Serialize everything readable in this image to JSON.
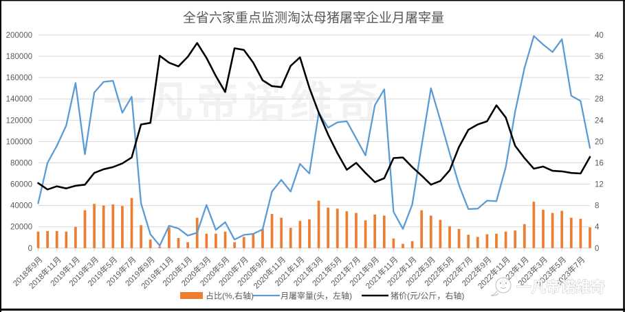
{
  "chart_data": {
    "type": "combo",
    "title": "全省六家重点监测淘汰母猪屠宰企业月屠宰量",
    "months": [
      "2018年9月",
      "2018年10月",
      "2018年11月",
      "2018年12月",
      "2019年1月",
      "2019年2月",
      "2019年3月",
      "2019年4月",
      "2019年5月",
      "2019年6月",
      "2019年7月",
      "2019年8月",
      "2019年9月",
      "2019年10月",
      "2019年11月",
      "2019年12月",
      "2020年1月",
      "2020年2月",
      "2020年3月",
      "2020年4月",
      "2020年5月",
      "2020年6月",
      "2020年7月",
      "2020年8月",
      "2020年9月",
      "2020年10月",
      "2020年11月",
      "2020年12月",
      "2021年1月",
      "2021年2月",
      "2021年3月",
      "2021年4月",
      "2021年5月",
      "2021年6月",
      "2021年7月",
      "2021年8月",
      "2021年9月",
      "2021年10月",
      "2021年11月",
      "2021年12月",
      "2022年1月",
      "2022年2月",
      "2022年3月",
      "2022年4月",
      "2022年5月",
      "2022年6月",
      "2022年7月",
      "2022年8月",
      "2022年9月",
      "2022年10月",
      "2022年11月",
      "2022年12月",
      "2023年1月",
      "2023年2月",
      "2023年3月",
      "2023年4月",
      "2023年5月",
      "2023年6月",
      "2023年7月",
      "2023年8月"
    ],
    "x_tick_labels": [
      "2018年9月",
      "2018年11月",
      "2019年1月",
      "2019年3月",
      "2019年5月",
      "2019年7月",
      "2019年9月",
      "2019年11月",
      "2020年1月",
      "2020年3月",
      "2020年5月",
      "2020年7月",
      "2020年9月",
      "2020年11月",
      "2021年1月",
      "2021年3月",
      "2021年5月",
      "2021年7月",
      "2021年9月",
      "2021年11月",
      "2022年1月",
      "2022年3月",
      "2022年5月",
      "2022年7月",
      "2022年9月",
      "2022年11月",
      "2023年1月",
      "2023年3月",
      "2023年5月",
      "2023年7月"
    ],
    "series": [
      {
        "name": "占比(%,右轴)",
        "type": "bar",
        "axis": "right",
        "color": "#ED7D31",
        "values": [
          3.1,
          3.2,
          3.2,
          3.1,
          4.0,
          7.1,
          8.3,
          8.0,
          8.2,
          7.9,
          9.4,
          4.3,
          1.6,
          0.3,
          3.9,
          1.9,
          1.1,
          5.7,
          2.7,
          2.7,
          3.1,
          1.1,
          2.1,
          2.6,
          3.6,
          6.4,
          5.7,
          3.8,
          5.1,
          5.4,
          8.9,
          7.6,
          7.4,
          6.9,
          6.6,
          5.2,
          6.3,
          6.1,
          1.8,
          0.8,
          1.3,
          7.1,
          6.1,
          5.3,
          4.1,
          3.6,
          2.5,
          2.1,
          2.6,
          2.7,
          3.1,
          3.3,
          4.5,
          8.7,
          7.2,
          6.6,
          7.0,
          5.7,
          5.5,
          3.9
        ]
      },
      {
        "name": "月屠宰量(头，左轴)",
        "type": "line",
        "axis": "left",
        "color": "#5B9BD5",
        "values": [
          42000,
          80000,
          96000,
          115000,
          155000,
          88000,
          146000,
          156000,
          157000,
          127000,
          142000,
          42000,
          13000,
          2300,
          21000,
          18400,
          11700,
          14400,
          40500,
          17100,
          24300,
          8000,
          12400,
          13400,
          17500,
          53000,
          64000,
          53000,
          79000,
          70000,
          127000,
          113000,
          118000,
          119000,
          103000,
          87000,
          134000,
          149000,
          34000,
          18000,
          41000,
          96000,
          150000,
          120000,
          89000,
          59000,
          36600,
          37000,
          44500,
          44000,
          76000,
          128000,
          169000,
          199000,
          191000,
          184000,
          196000,
          143000,
          138000,
          94000
        ]
      },
      {
        "name": "猪价(元/公斤，右轴)",
        "type": "line",
        "axis": "right",
        "color": "#000000",
        "values": [
          12.2,
          11.0,
          11.6,
          11.2,
          11.7,
          11.9,
          14.1,
          14.8,
          15.2,
          15.9,
          17.0,
          23.2,
          23.5,
          36.1,
          34.8,
          34.1,
          35.9,
          38.5,
          35.7,
          32.3,
          29.3,
          37.5,
          37.2,
          34.8,
          31.5,
          30.4,
          30.2,
          34.2,
          35.8,
          30.1,
          25.4,
          21.3,
          17.8,
          14.7,
          16.0,
          14.1,
          12.4,
          13.1,
          16.9,
          17.0,
          15.2,
          13.6,
          11.9,
          12.6,
          14.6,
          19.0,
          22.2,
          23.2,
          23.8,
          26.8,
          24.5,
          19.2,
          16.9,
          14.9,
          15.3,
          14.5,
          14.4,
          14.1,
          14.0,
          17.1
        ]
      }
    ],
    "left_axis": {
      "min": 0,
      "max": 200000,
      "step": 20000,
      "labels": [
        "0",
        "20000",
        "40000",
        "60000",
        "80000",
        "100000",
        "120000",
        "140000",
        "160000",
        "180000",
        "200000"
      ]
    },
    "right_axis": {
      "min": 0,
      "max": 40,
      "step": 4,
      "labels": [
        "0",
        "4",
        "8",
        "12",
        "16",
        "20",
        "24",
        "28",
        "32",
        "36",
        "40"
      ]
    },
    "grid": true,
    "legend_position": "bottom"
  },
  "colors": {
    "grid": "#D9D9D9",
    "axis_line": "#D0D0D0",
    "label": "#595959",
    "title": "#595959",
    "frame": "#000000",
    "background": "#FFFFFF"
  },
  "watermarks": {
    "center_text": "一凡帝诺维奇",
    "corner_text": "一凡帝诺维奇"
  }
}
